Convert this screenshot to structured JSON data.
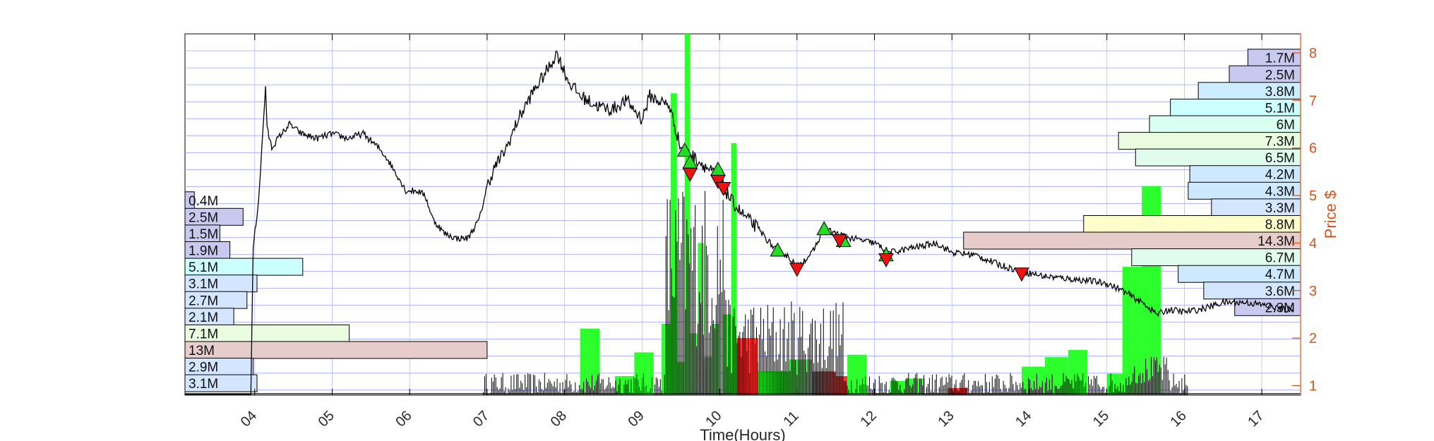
{
  "chart_data": {
    "type": "line",
    "xlabel": "Time(Hours)",
    "ylabel": "Price $",
    "x_tick_labels": [
      "04",
      "05",
      "06",
      "07",
      "08",
      "09",
      "10",
      "11",
      "12",
      "13",
      "14",
      "15",
      "16",
      "17"
    ],
    "x_tick_hours": [
      4,
      5,
      6,
      7,
      8,
      9,
      10,
      11,
      12,
      13,
      14,
      15,
      16,
      17
    ],
    "xlim": [
      3.1,
      17.5
    ],
    "ylim": [
      0.8,
      8.4
    ],
    "y_ticks": [
      1,
      2,
      3,
      4,
      5,
      6,
      7,
      8
    ],
    "grid": true,
    "price_series": {
      "x": [
        3.1,
        3.95,
        3.98,
        4.05,
        4.1,
        4.14,
        4.16,
        4.22,
        4.3,
        4.45,
        4.6,
        4.8,
        5.0,
        5.2,
        5.4,
        5.6,
        5.7,
        5.85,
        5.95,
        6.1,
        6.2,
        6.3,
        6.45,
        6.6,
        6.75,
        6.9,
        7.0,
        7.1,
        7.25,
        7.4,
        7.6,
        7.8,
        7.9,
        8.05,
        8.2,
        8.4,
        8.6,
        8.8,
        9.0,
        9.1,
        9.2,
        9.35,
        9.5,
        9.6,
        9.75,
        9.9,
        10.0,
        10.15,
        10.3,
        10.5,
        10.7,
        10.9,
        11.0,
        11.2,
        11.35,
        11.5,
        11.7,
        12.0,
        12.2,
        12.5,
        12.8,
        13.0,
        13.3,
        13.6,
        13.9,
        14.2,
        14.5,
        14.8,
        15.0,
        15.2,
        15.5,
        15.65,
        15.8,
        16.0,
        16.2,
        16.5,
        16.8,
        17.0,
        17.3,
        17.4
      ],
      "y": [
        0.82,
        0.82,
        3.9,
        4.9,
        6.2,
        7.3,
        6.4,
        6.0,
        6.2,
        6.5,
        6.3,
        6.2,
        6.3,
        6.2,
        6.3,
        6.0,
        5.8,
        5.4,
        5.1,
        5.1,
        5.0,
        4.5,
        4.2,
        4.1,
        4.1,
        4.5,
        5.2,
        5.6,
        6.0,
        6.6,
        7.2,
        7.7,
        8.0,
        7.4,
        7.1,
        6.9,
        6.8,
        7.0,
        6.6,
        7.1,
        7.0,
        6.9,
        6.0,
        5.9,
        5.7,
        5.5,
        5.3,
        4.9,
        4.6,
        4.3,
        3.9,
        3.7,
        3.5,
        3.8,
        4.3,
        4.2,
        4.1,
        4.0,
        3.8,
        3.9,
        4.0,
        3.8,
        3.75,
        3.55,
        3.4,
        3.3,
        3.25,
        3.2,
        3.15,
        3.0,
        2.7,
        2.5,
        2.6,
        2.55,
        2.6,
        2.75,
        2.75,
        2.7,
        2.6,
        2.6
      ]
    },
    "buy_markers": [
      {
        "hour": 9.55,
        "price": 5.95
      },
      {
        "hour": 9.62,
        "price": 5.7
      },
      {
        "hour": 9.98,
        "price": 5.55
      },
      {
        "hour": 10.75,
        "price": 3.85
      },
      {
        "hour": 11.35,
        "price": 4.3
      },
      {
        "hour": 11.6,
        "price": 4.05
      },
      {
        "hour": 12.15,
        "price": 3.75
      }
    ],
    "sell_markers": [
      {
        "hour": 9.62,
        "price": 5.45
      },
      {
        "hour": 9.98,
        "price": 5.3
      },
      {
        "hour": 10.05,
        "price": 5.15
      },
      {
        "hour": 11.0,
        "price": 3.45
      },
      {
        "hour": 11.55,
        "price": 4.05
      },
      {
        "hour": 12.15,
        "price": 3.65
      },
      {
        "hour": 13.9,
        "price": 3.35
      }
    ],
    "volume_bars": [
      {
        "start": 8.2,
        "end": 8.45,
        "top": 2.2,
        "color": "green"
      },
      {
        "start": 8.65,
        "end": 8.9,
        "top": 1.2,
        "color": "green"
      },
      {
        "start": 8.9,
        "end": 9.15,
        "top": 1.7,
        "color": "green"
      },
      {
        "start": 9.25,
        "end": 9.37,
        "top": 2.3,
        "color": "green"
      },
      {
        "start": 9.37,
        "end": 9.45,
        "top": 7.15,
        "color": "green"
      },
      {
        "start": 9.45,
        "end": 9.55,
        "top": 1.5,
        "color": "green"
      },
      {
        "start": 9.55,
        "end": 9.62,
        "top": 8.4,
        "color": "green"
      },
      {
        "start": 9.62,
        "end": 9.72,
        "top": 2.1,
        "color": "green"
      },
      {
        "start": 9.72,
        "end": 9.8,
        "top": 4.0,
        "color": "green"
      },
      {
        "start": 9.8,
        "end": 9.9,
        "top": 1.6,
        "color": "green"
      },
      {
        "start": 9.9,
        "end": 10.0,
        "top": 2.3,
        "color": "green"
      },
      {
        "start": 10.05,
        "end": 10.15,
        "top": 2.5,
        "color": "green"
      },
      {
        "start": 10.15,
        "end": 10.22,
        "top": 6.1,
        "color": "green"
      },
      {
        "start": 10.22,
        "end": 10.5,
        "top": 2.0,
        "color": "red"
      },
      {
        "start": 10.5,
        "end": 10.9,
        "top": 1.3,
        "color": "green"
      },
      {
        "start": 10.9,
        "end": 11.2,
        "top": 1.55,
        "color": "green"
      },
      {
        "start": 11.2,
        "end": 11.5,
        "top": 1.3,
        "color": "red"
      },
      {
        "start": 11.5,
        "end": 11.65,
        "top": 1.2,
        "color": "red"
      },
      {
        "start": 11.65,
        "end": 11.9,
        "top": 1.65,
        "color": "green"
      },
      {
        "start": 12.2,
        "end": 12.4,
        "top": 1.1,
        "color": "green"
      },
      {
        "start": 12.4,
        "end": 12.65,
        "top": 1.15,
        "color": "green"
      },
      {
        "start": 12.95,
        "end": 13.2,
        "top": 0.95,
        "color": "red"
      },
      {
        "start": 13.9,
        "end": 14.2,
        "top": 1.4,
        "color": "green"
      },
      {
        "start": 14.2,
        "end": 14.5,
        "top": 1.6,
        "color": "green"
      },
      {
        "start": 14.5,
        "end": 14.75,
        "top": 1.75,
        "color": "green"
      },
      {
        "start": 15.0,
        "end": 15.2,
        "top": 1.25,
        "color": "green"
      },
      {
        "start": 15.2,
        "end": 15.45,
        "top": 3.5,
        "color": "green"
      },
      {
        "start": 15.45,
        "end": 15.7,
        "top": 5.2,
        "color": "green"
      }
    ],
    "volume_profile_left": [
      {
        "label": "0.4M",
        "price": 4.9,
        "length_hours": 0.12,
        "color": "#c9c9f0"
      },
      {
        "label": "2.5M",
        "price": 4.55,
        "length_hours": 0.75,
        "color": "#c9c9f0"
      },
      {
        "label": "1.5M",
        "price": 4.2,
        "length_hours": 0.45,
        "color": "#c9c9f0"
      },
      {
        "label": "1.9M",
        "price": 3.85,
        "length_hours": 0.58,
        "color": "#c9c9f0"
      },
      {
        "label": "5.1M",
        "price": 3.5,
        "length_hours": 1.52,
        "color": "#ccffff"
      },
      {
        "label": "3.1M",
        "price": 3.15,
        "length_hours": 0.93,
        "color": "#d4e5ff"
      },
      {
        "label": "2.7M",
        "price": 2.8,
        "length_hours": 0.8,
        "color": "#d4e5ff"
      },
      {
        "label": "2.1M",
        "price": 2.45,
        "length_hours": 0.63,
        "color": "#d4e5ff"
      },
      {
        "label": "7.1M",
        "price": 2.1,
        "length_hours": 2.12,
        "color": "#e9fce0"
      },
      {
        "label": "13M",
        "price": 1.75,
        "length_hours": 3.9,
        "color": "#e7cccc"
      },
      {
        "label": "2.9M",
        "price": 1.4,
        "length_hours": 0.88,
        "color": "#d4e5ff"
      },
      {
        "label": "3.1M",
        "price": 1.05,
        "length_hours": 0.93,
        "color": "#d4e5ff"
      }
    ],
    "volume_profile_right": [
      {
        "label": "1.7M",
        "price": 7.9,
        "length_hours": 0.68,
        "color": "#c9c9f0"
      },
      {
        "label": "2.5M",
        "price": 7.55,
        "length_hours": 0.92,
        "color": "#c9c9f0"
      },
      {
        "label": "3.8M",
        "price": 7.2,
        "length_hours": 1.32,
        "color": "#ccecff"
      },
      {
        "label": "5.1M",
        "price": 6.85,
        "length_hours": 1.68,
        "color": "#ccffff"
      },
      {
        "label": "6M",
        "price": 6.5,
        "length_hours": 1.95,
        "color": "#d9fff2"
      },
      {
        "label": "7.3M",
        "price": 6.15,
        "length_hours": 2.35,
        "color": "#e9fce0"
      },
      {
        "label": "6.5M",
        "price": 5.8,
        "length_hours": 2.13,
        "color": "#e0fced"
      },
      {
        "label": "4.2M",
        "price": 5.45,
        "length_hours": 1.43,
        "color": "#cce9ff"
      },
      {
        "label": "4.3M",
        "price": 5.1,
        "length_hours": 1.45,
        "color": "#cce9ff"
      },
      {
        "label": "3.3M",
        "price": 4.75,
        "length_hours": 1.15,
        "color": "#d4e5ff"
      },
      {
        "label": "8.8M",
        "price": 4.4,
        "length_hours": 2.8,
        "color": "#ffffcc"
      },
      {
        "label": "14.3M",
        "price": 4.05,
        "length_hours": 4.35,
        "color": "#e7cccc"
      },
      {
        "label": "6.7M",
        "price": 3.7,
        "length_hours": 2.18,
        "color": "#e0fced"
      },
      {
        "label": "4.7M",
        "price": 3.35,
        "length_hours": 1.58,
        "color": "#cce9ff"
      },
      {
        "label": "3.6M",
        "price": 3.0,
        "length_hours": 1.25,
        "color": "#d4e5ff"
      },
      {
        "label": "2.3M",
        "price": 2.65,
        "length_hours": 0.85,
        "color": "#c9c9f0"
      }
    ]
  }
}
